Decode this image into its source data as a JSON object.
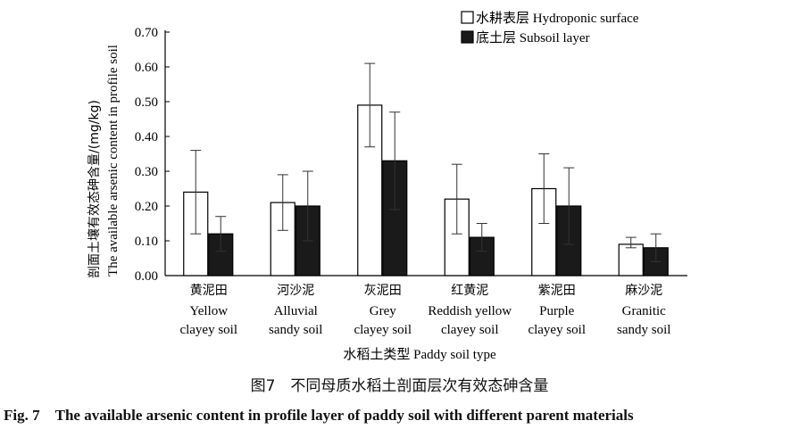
{
  "chart_data": {
    "type": "bar",
    "ylabel_cn": "剖面土壤有效态砷含量/(mg/kg)",
    "ylabel_en": "The available arsenic content  in profile soil",
    "xlabel": "水稻土类型 Paddy soil type",
    "ylim": [
      0,
      0.7
    ],
    "yticks": [
      "0.00",
      "0.10",
      "0.20",
      "0.30",
      "0.40",
      "0.50",
      "0.60",
      "0.70"
    ],
    "categories": [
      {
        "cn": "黄泥田",
        "en1": "Yellow",
        "en2": "clayey soil"
      },
      {
        "cn": "河沙泥",
        "en1": "Alluvial",
        "en2": "sandy soil"
      },
      {
        "cn": "灰泥田",
        "en1": "Grey",
        "en2": "clayey soil"
      },
      {
        "cn": "红黄泥",
        "en1": "Reddish yellow",
        "en2": "clayey soil"
      },
      {
        "cn": "紫泥田",
        "en1": "Purple",
        "en2": "clayey soil"
      },
      {
        "cn": "麻沙泥",
        "en1": "Granitic",
        "en2": "sandy soil"
      }
    ],
    "series": [
      {
        "name": "水耕表层 Hydroponic surface",
        "fill": "#ffffff",
        "values": [
          0.24,
          0.21,
          0.49,
          0.22,
          0.25,
          0.09
        ],
        "error_low": [
          0.12,
          0.13,
          0.37,
          0.12,
          0.15,
          0.08
        ],
        "error_high": [
          0.36,
          0.29,
          0.61,
          0.32,
          0.35,
          0.11
        ]
      },
      {
        "name": "底土层 Subsoil layer",
        "fill": "#1a1a1a",
        "values": [
          0.12,
          0.2,
          0.33,
          0.11,
          0.2,
          0.08
        ],
        "error_low": [
          0.07,
          0.1,
          0.19,
          0.07,
          0.09,
          0.04
        ],
        "error_high": [
          0.17,
          0.3,
          0.47,
          0.15,
          0.31,
          0.12
        ]
      }
    ],
    "legend_position": "top-right"
  },
  "caption_cn": "图7　不同母质水稻土剖面层次有效态砷含量",
  "caption_en": "Fig. 7　The available arsenic content in profile layer of paddy soil with different parent materials"
}
